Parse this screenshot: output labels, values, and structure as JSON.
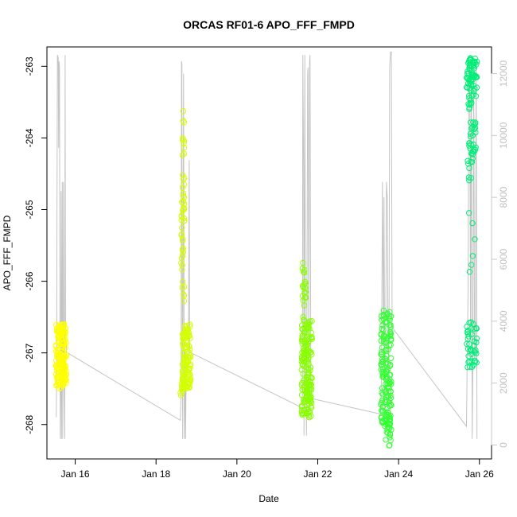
{
  "chart_data": {
    "type": "scatter",
    "title": "ORCAS RF01-6 APO_FFF_FMPD",
    "xlabel": "Date",
    "ylabel": "APO_FFF_FMPD",
    "xlim": [
      15.3,
      26.3
    ],
    "ylim": [
      -268.48,
      -262.73
    ],
    "y2lim": [
      -450,
      12860
    ],
    "x_ticks": [
      {
        "value": 16,
        "label": "Jan 16"
      },
      {
        "value": 18,
        "label": "Jan 18"
      },
      {
        "value": 20,
        "label": "Jan 20"
      },
      {
        "value": 22,
        "label": "Jan 22"
      },
      {
        "value": 24,
        "label": "Jan 24"
      },
      {
        "value": 26,
        "label": "Jan 26"
      }
    ],
    "y_ticks": [
      -268,
      -267,
      -266,
      -265,
      -264,
      -263
    ],
    "y2_ticks": [
      0,
      2000,
      4000,
      6000,
      8000,
      10000,
      12000
    ],
    "grid": false,
    "colors": {
      "axis": "#000000",
      "secondary_axis": "#c8c8c8",
      "altitude_line": "#c4c4c4"
    },
    "series": [
      {
        "kind": "line",
        "axis": "right",
        "points": [
          [
            15.53,
            900
          ],
          [
            15.54,
            2500
          ],
          [
            15.55,
            8000
          ],
          [
            15.56,
            12600
          ],
          [
            15.58,
            12500
          ],
          [
            15.59,
            9600
          ],
          [
            15.6,
            12400
          ],
          [
            15.61,
            12200
          ],
          [
            15.62,
            3500
          ],
          [
            15.63,
            200
          ],
          [
            15.64,
            2200
          ],
          [
            15.65,
            8200
          ],
          [
            15.66,
            200
          ],
          [
            15.67,
            3000
          ],
          [
            15.68,
            8500
          ],
          [
            15.69,
            200
          ],
          [
            15.7,
            2800
          ],
          [
            15.71,
            8500
          ],
          [
            15.72,
            3000
          ],
          [
            15.74,
            200
          ],
          [
            15.75,
            12600
          ],
          [
            15.76,
            4000
          ],
          [
            15.78,
            3000
          ],
          [
            18.6,
            800
          ],
          [
            18.62,
            1700
          ],
          [
            18.63,
            12400
          ],
          [
            18.64,
            12300
          ],
          [
            18.65,
            3000
          ],
          [
            18.66,
            200
          ],
          [
            18.68,
            12000
          ],
          [
            18.69,
            5000
          ],
          [
            18.7,
            200
          ],
          [
            18.72,
            3000
          ],
          [
            18.73,
            200
          ],
          [
            18.75,
            3000
          ],
          [
            18.8,
            2800
          ],
          [
            18.82,
            9200
          ],
          [
            18.83,
            3000
          ],
          [
            21.62,
            1200
          ],
          [
            21.63,
            12600
          ],
          [
            21.65,
            9000
          ],
          [
            21.66,
            300
          ],
          [
            21.68,
            12600
          ],
          [
            21.7,
            3000
          ],
          [
            21.72,
            300
          ],
          [
            21.73,
            3500
          ],
          [
            21.75,
            12000
          ],
          [
            21.76,
            12200
          ],
          [
            21.78,
            3000
          ],
          [
            21.8,
            12400
          ],
          [
            21.81,
            12600
          ],
          [
            21.83,
            2000
          ],
          [
            21.85,
            1500
          ],
          [
            23.56,
            1000
          ],
          [
            23.58,
            3000
          ],
          [
            23.6,
            8500
          ],
          [
            23.62,
            5000
          ],
          [
            23.63,
            3500
          ],
          [
            23.64,
            8000
          ],
          [
            23.66,
            1000
          ],
          [
            23.68,
            3500
          ],
          [
            23.7,
            8500
          ],
          [
            23.72,
            8000
          ],
          [
            23.74,
            3000
          ],
          [
            23.75,
            2800
          ],
          [
            23.76,
            1500
          ],
          [
            23.78,
            12200
          ],
          [
            23.8,
            12700
          ],
          [
            23.82,
            12700
          ],
          [
            23.84,
            3800
          ],
          [
            25.68,
            600
          ],
          [
            25.7,
            3000
          ],
          [
            25.72,
            5000
          ],
          [
            25.74,
            12400
          ],
          [
            25.76,
            12300
          ],
          [
            25.78,
            3400
          ],
          [
            25.79,
            9200
          ],
          [
            25.8,
            12200
          ],
          [
            25.82,
            200
          ],
          [
            25.84,
            3000
          ],
          [
            25.86,
            12500
          ],
          [
            25.88,
            2800
          ],
          [
            25.9,
            3000
          ],
          [
            25.92,
            12300
          ],
          [
            25.94,
            200
          ]
        ]
      },
      {
        "kind": "points",
        "axis": "left",
        "groups": [
          {
            "color": "#ffff00",
            "x_range": [
              15.52,
              15.78
            ],
            "clusters": [
              {
                "y_min": -267.45,
                "y_max": -266.6,
                "n": 150,
                "x_range": [
                  15.52,
                  15.78
                ]
              },
              {
                "y_min": -267.5,
                "y_max": -267.2,
                "n": 25,
                "x_range": [
                  15.52,
                  15.78
                ]
              }
            ]
          },
          {
            "color": "#d4ff00",
            "x_range": [
              18.6,
              18.86
            ],
            "clusters": [
              {
                "y_min": -267.5,
                "y_max": -266.6,
                "n": 110,
                "x_range": [
                  18.65,
                  18.86
                ]
              },
              {
                "y_min": -266.3,
                "y_max": -264.5,
                "n": 40,
                "x_range": [
                  18.62,
                  18.7
                ]
              },
              {
                "y_min": -264.3,
                "y_max": -263.6,
                "n": 10,
                "x_range": [
                  18.64,
                  18.7
                ]
              },
              {
                "y_min": -267.6,
                "y_max": -267.3,
                "n": 12,
                "x_range": [
                  18.6,
                  18.66
                ]
              }
            ]
          },
          {
            "color": "#88ff00",
            "x_range": [
              21.6,
              21.86
            ],
            "clusters": [
              {
                "y_min": -267.9,
                "y_max": -266.5,
                "n": 150,
                "x_range": [
                  21.6,
                  21.86
                ]
              },
              {
                "y_min": -266.5,
                "y_max": -265.7,
                "n": 20,
                "x_range": [
                  21.62,
                  21.7
                ]
              },
              {
                "y_min": -267.7,
                "y_max": -267.4,
                "n": 20,
                "x_range": [
                  21.75,
                  21.86
                ]
              }
            ]
          },
          {
            "color": "#33ff33",
            "x_range": [
              23.56,
              23.82
            ],
            "clusters": [
              {
                "y_min": -268.0,
                "y_max": -266.4,
                "n": 150,
                "x_range": [
                  23.56,
                  23.82
                ]
              },
              {
                "y_min": -268.3,
                "y_max": -267.9,
                "n": 20,
                "x_range": [
                  23.64,
                  23.82
                ]
              }
            ]
          },
          {
            "color": "#00ee77",
            "x_range": [
              25.66,
              25.94
            ],
            "clusters": [
              {
                "y_min": -263.3,
                "y_max": -262.85,
                "n": 55,
                "x_range": [
                  25.68,
                  25.94
                ]
              },
              {
                "y_min": -264.2,
                "y_max": -263.3,
                "n": 40,
                "x_range": [
                  25.72,
                  25.92
                ]
              },
              {
                "y_min": -264.6,
                "y_max": -264.2,
                "n": 12,
                "x_range": [
                  25.7,
                  25.84
                ]
              },
              {
                "y_min": -267.2,
                "y_max": -266.55,
                "n": 40,
                "x_range": [
                  25.68,
                  25.94
                ]
              },
              {
                "y_min": -265.9,
                "y_max": -265.0,
                "n": 6,
                "x_range": [
                  25.68,
                  25.9
                ]
              }
            ]
          }
        ]
      }
    ]
  }
}
